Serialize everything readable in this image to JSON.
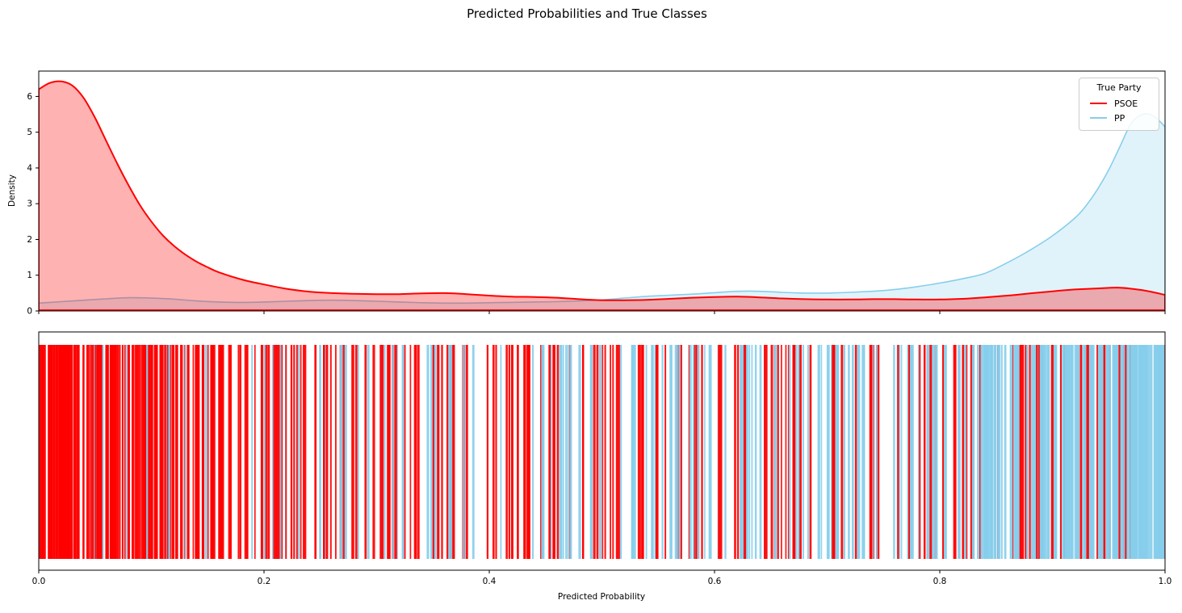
{
  "figure": {
    "title": "Predicted Probabilities and True Classes",
    "background": "#ffffff"
  },
  "legend": {
    "title": "True Party",
    "position": "upper right",
    "entries": [
      {
        "label": "PSOE",
        "color": "#ff0000"
      },
      {
        "label": "PP",
        "color": "#87ceeb"
      }
    ]
  },
  "chart_data": [
    {
      "type": "area",
      "name": "kde-density-panel",
      "xlabel": "",
      "ylabel": "Density",
      "xlim": [
        0,
        1
      ],
      "ylim": [
        0,
        6.71
      ],
      "grid": false,
      "xtick_positions": [
        0,
        0.2,
        0.4,
        0.6,
        0.8,
        1.0
      ],
      "xticks_labeled": false,
      "yticks": [
        "0",
        "1",
        "2",
        "3",
        "4",
        "5",
        "6"
      ],
      "series": [
        {
          "name": "PSOE",
          "color": "#ff0000",
          "fill_opacity": 0.3,
          "stroke_width": 2,
          "points": [
            [
              0,
              6.2
            ],
            [
              0.01,
              6.38
            ],
            [
              0.02,
              6.42
            ],
            [
              0.03,
              6.3
            ],
            [
              0.04,
              5.95
            ],
            [
              0.05,
              5.4
            ],
            [
              0.06,
              4.75
            ],
            [
              0.07,
              4.1
            ],
            [
              0.08,
              3.5
            ],
            [
              0.09,
              2.95
            ],
            [
              0.1,
              2.5
            ],
            [
              0.11,
              2.12
            ],
            [
              0.12,
              1.82
            ],
            [
              0.13,
              1.58
            ],
            [
              0.14,
              1.38
            ],
            [
              0.15,
              1.22
            ],
            [
              0.16,
              1.08
            ],
            [
              0.18,
              0.88
            ],
            [
              0.2,
              0.74
            ],
            [
              0.22,
              0.62
            ],
            [
              0.24,
              0.54
            ],
            [
              0.26,
              0.5
            ],
            [
              0.28,
              0.48
            ],
            [
              0.3,
              0.47
            ],
            [
              0.32,
              0.47
            ],
            [
              0.34,
              0.49
            ],
            [
              0.36,
              0.5
            ],
            [
              0.38,
              0.47
            ],
            [
              0.4,
              0.43
            ],
            [
              0.42,
              0.4
            ],
            [
              0.44,
              0.39
            ],
            [
              0.46,
              0.37
            ],
            [
              0.48,
              0.33
            ],
            [
              0.5,
              0.3
            ],
            [
              0.52,
              0.3
            ],
            [
              0.54,
              0.31
            ],
            [
              0.56,
              0.34
            ],
            [
              0.58,
              0.37
            ],
            [
              0.6,
              0.39
            ],
            [
              0.62,
              0.4
            ],
            [
              0.64,
              0.38
            ],
            [
              0.66,
              0.35
            ],
            [
              0.68,
              0.33
            ],
            [
              0.7,
              0.32
            ],
            [
              0.72,
              0.32
            ],
            [
              0.74,
              0.33
            ],
            [
              0.76,
              0.33
            ],
            [
              0.78,
              0.32
            ],
            [
              0.8,
              0.32
            ],
            [
              0.82,
              0.34
            ],
            [
              0.84,
              0.38
            ],
            [
              0.86,
              0.43
            ],
            [
              0.88,
              0.49
            ],
            [
              0.9,
              0.55
            ],
            [
              0.92,
              0.6
            ],
            [
              0.94,
              0.63
            ],
            [
              0.96,
              0.65
            ],
            [
              0.98,
              0.58
            ],
            [
              1,
              0.45
            ]
          ]
        },
        {
          "name": "PP",
          "color": "#87ceeb",
          "fill_opacity": 0.25,
          "stroke_width": 1.6,
          "points": [
            [
              0,
              0.22
            ],
            [
              0.02,
              0.26
            ],
            [
              0.04,
              0.3
            ],
            [
              0.06,
              0.34
            ],
            [
              0.08,
              0.37
            ],
            [
              0.1,
              0.36
            ],
            [
              0.12,
              0.33
            ],
            [
              0.14,
              0.28
            ],
            [
              0.16,
              0.25
            ],
            [
              0.18,
              0.24
            ],
            [
              0.2,
              0.25
            ],
            [
              0.22,
              0.27
            ],
            [
              0.24,
              0.29
            ],
            [
              0.26,
              0.3
            ],
            [
              0.28,
              0.29
            ],
            [
              0.3,
              0.27
            ],
            [
              0.32,
              0.25
            ],
            [
              0.34,
              0.23
            ],
            [
              0.36,
              0.22
            ],
            [
              0.38,
              0.22
            ],
            [
              0.4,
              0.23
            ],
            [
              0.42,
              0.24
            ],
            [
              0.44,
              0.25
            ],
            [
              0.46,
              0.26
            ],
            [
              0.48,
              0.28
            ],
            [
              0.5,
              0.31
            ],
            [
              0.52,
              0.36
            ],
            [
              0.54,
              0.41
            ],
            [
              0.56,
              0.44
            ],
            [
              0.58,
              0.47
            ],
            [
              0.6,
              0.51
            ],
            [
              0.62,
              0.55
            ],
            [
              0.64,
              0.55
            ],
            [
              0.66,
              0.52
            ],
            [
              0.68,
              0.5
            ],
            [
              0.7,
              0.5
            ],
            [
              0.72,
              0.52
            ],
            [
              0.74,
              0.55
            ],
            [
              0.76,
              0.6
            ],
            [
              0.78,
              0.68
            ],
            [
              0.8,
              0.78
            ],
            [
              0.82,
              0.9
            ],
            [
              0.84,
              1.05
            ],
            [
              0.86,
              1.35
            ],
            [
              0.88,
              1.7
            ],
            [
              0.9,
              2.1
            ],
            [
              0.92,
              2.6
            ],
            [
              0.93,
              2.95
            ],
            [
              0.94,
              3.4
            ],
            [
              0.95,
              3.95
            ],
            [
              0.96,
              4.6
            ],
            [
              0.97,
              5.25
            ],
            [
              0.98,
              5.5
            ],
            [
              0.99,
              5.45
            ],
            [
              1,
              5.15
            ]
          ]
        }
      ]
    },
    {
      "type": "rug",
      "name": "true-class-rug-panel",
      "xlabel": "Predicted Probability",
      "xlim": [
        0,
        1
      ],
      "grid": false,
      "xticks": [
        "0.0",
        "0.2",
        "0.4",
        "0.6",
        "0.8",
        "1.0"
      ],
      "series": [
        {
          "name": "PSOE",
          "color": "#ff0000",
          "segments": [
            {
              "from": 0.001,
              "to": 0.045,
              "count": 60
            },
            {
              "from": 0.045,
              "to": 0.1,
              "count": 55
            },
            {
              "from": 0.1,
              "to": 0.15,
              "count": 38
            },
            {
              "from": 0.15,
              "to": 0.22,
              "count": 30
            },
            {
              "from": 0.22,
              "to": 0.3,
              "count": 22
            },
            {
              "from": 0.3,
              "to": 0.38,
              "count": 22
            },
            {
              "from": 0.38,
              "to": 0.46,
              "count": 20
            },
            {
              "from": 0.46,
              "to": 0.54,
              "count": 16
            },
            {
              "from": 0.54,
              "to": 0.62,
              "count": 18
            },
            {
              "from": 0.62,
              "to": 0.7,
              "count": 16
            },
            {
              "from": 0.7,
              "to": 0.78,
              "count": 14
            },
            {
              "from": 0.78,
              "to": 0.86,
              "count": 14
            },
            {
              "from": 0.86,
              "to": 0.93,
              "count": 16
            },
            {
              "from": 0.93,
              "to": 0.97,
              "count": 12
            },
            {
              "from": 0.97,
              "to": 0.999,
              "count": 5
            }
          ]
        },
        {
          "name": "PP",
          "color": "#87ceeb",
          "segments": [
            {
              "from": 0.01,
              "to": 0.1,
              "count": 6
            },
            {
              "from": 0.1,
              "to": 0.2,
              "count": 8
            },
            {
              "from": 0.2,
              "to": 0.3,
              "count": 14
            },
            {
              "from": 0.3,
              "to": 0.4,
              "count": 18
            },
            {
              "from": 0.4,
              "to": 0.5,
              "count": 18
            },
            {
              "from": 0.5,
              "to": 0.58,
              "count": 16
            },
            {
              "from": 0.58,
              "to": 0.66,
              "count": 20
            },
            {
              "from": 0.66,
              "to": 0.74,
              "count": 22
            },
            {
              "from": 0.74,
              "to": 0.8,
              "count": 22
            },
            {
              "from": 0.8,
              "to": 0.86,
              "count": 30
            },
            {
              "from": 0.86,
              "to": 0.9,
              "count": 30
            },
            {
              "from": 0.9,
              "to": 0.94,
              "count": 40
            },
            {
              "from": 0.94,
              "to": 0.97,
              "count": 45
            },
            {
              "from": 0.97,
              "to": 0.999,
              "count": 60
            }
          ]
        }
      ]
    }
  ]
}
